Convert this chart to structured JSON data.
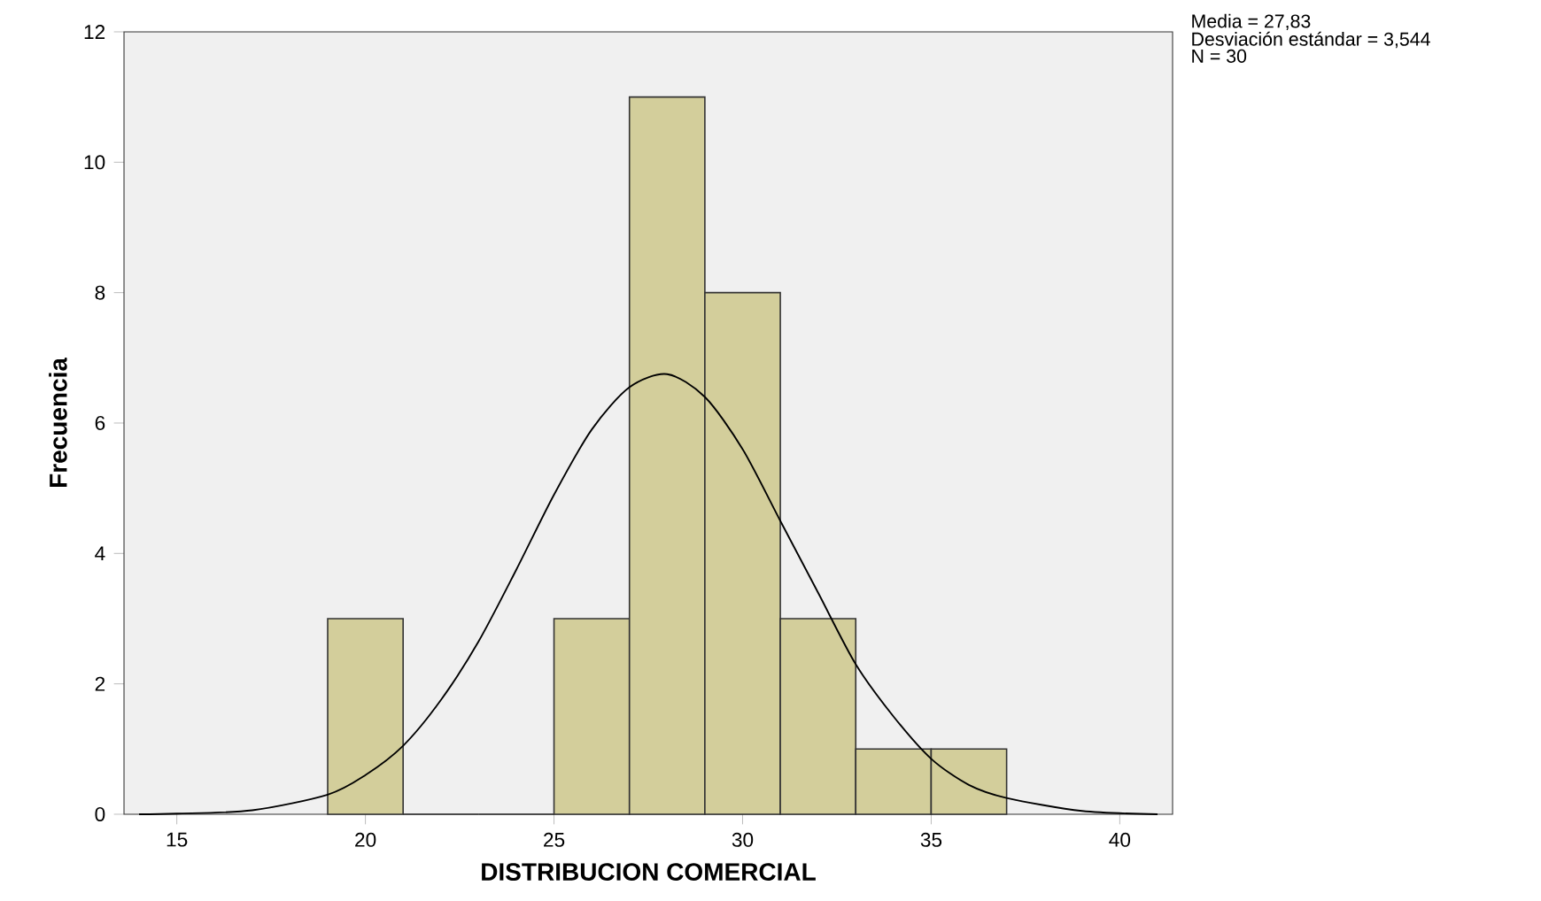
{
  "chart_data": {
    "type": "histogram",
    "xlabel": "DISTRIBUCION COMERCIAL",
    "ylabel": "Frecuencia",
    "bins": [
      19,
      21,
      23,
      25,
      27,
      29,
      31,
      33,
      35,
      37
    ],
    "values": [
      3,
      0,
      0,
      3,
      11,
      8,
      3,
      1,
      1
    ],
    "color": "#d3ce9b",
    "series": [
      {
        "type": "line",
        "color": "#000000",
        "x": [
          14,
          15,
          17,
          19,
          20,
          21,
          22,
          23,
          24,
          25,
          26,
          27,
          28,
          29,
          30,
          31,
          32,
          33,
          34,
          35,
          36,
          37,
          39,
          41
        ],
        "values": [
          0.0,
          0.01,
          0.06,
          0.3,
          0.6,
          1.05,
          1.75,
          2.65,
          3.75,
          4.9,
          5.9,
          6.55,
          6.75,
          6.4,
          5.6,
          4.5,
          3.4,
          2.3,
          1.5,
          0.85,
          0.45,
          0.25,
          0.05,
          0.0
        ]
      }
    ],
    "xlim": [
      13.6,
      41.4
    ],
    "ylim": [
      0,
      12
    ],
    "xticks": [
      15,
      20,
      25,
      30,
      35,
      40
    ],
    "yticks": [
      0,
      2,
      4,
      6,
      8,
      10,
      12
    ],
    "annotations": [
      "Media = 27,83",
      "Desviación estándar = 3,544",
      "N = 30"
    ]
  }
}
